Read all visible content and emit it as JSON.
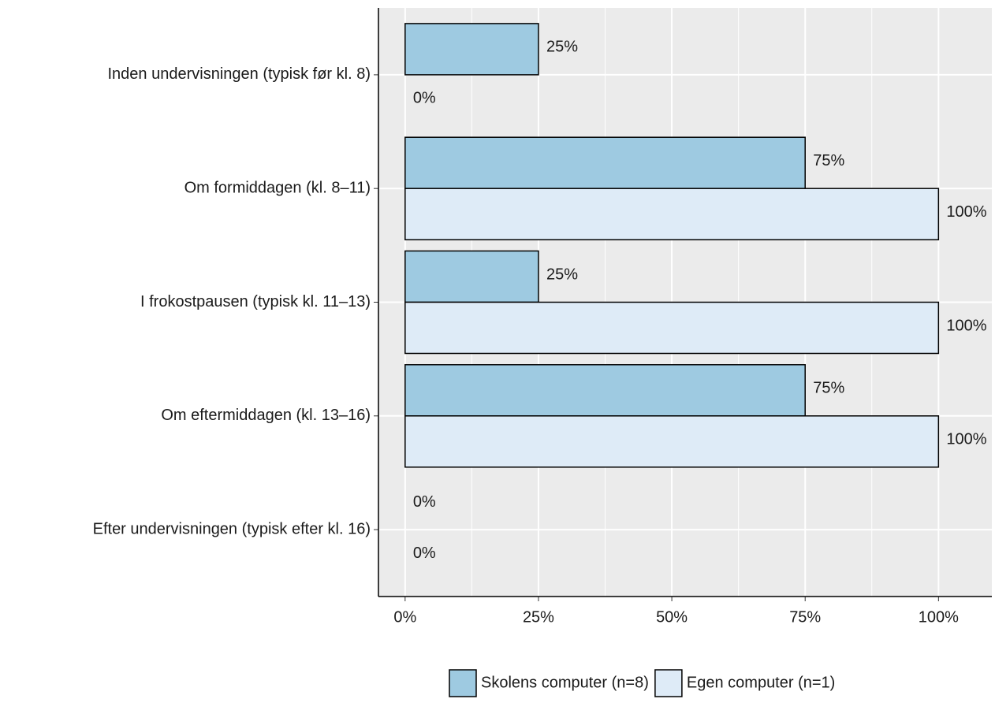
{
  "chart_data": {
    "type": "barh",
    "categories": [
      "Inden undervisningen (typisk før kl. 8)",
      "Om formiddagen (kl. 8–11)",
      "I frokostpausen (typisk kl. 11–13)",
      "Om eftermiddagen (kl. 13–16)",
      "Efter undervisningen (typisk efter kl. 16)"
    ],
    "series": [
      {
        "name": "Skolens computer (n=8)",
        "color": "#9ecae1",
        "values": [
          25,
          75,
          25,
          75,
          0
        ],
        "value_labels": [
          "25%",
          "75%",
          "25%",
          "75%",
          "0%"
        ]
      },
      {
        "name": "Egen computer (n=1)",
        "color": "#deebf7",
        "values": [
          0,
          100,
          100,
          100,
          0
        ],
        "value_labels": [
          "0%",
          "100%",
          "100%",
          "100%",
          "0%"
        ]
      }
    ],
    "xlim": [
      -5,
      110
    ],
    "xticks": [
      {
        "value": 0,
        "label": "0%"
      },
      {
        "value": 25,
        "label": "25%"
      },
      {
        "value": 50,
        "label": "50%"
      },
      {
        "value": 75,
        "label": "75%"
      },
      {
        "value": 100,
        "label": "100%"
      }
    ],
    "grid": true,
    "legend": "bottom"
  }
}
